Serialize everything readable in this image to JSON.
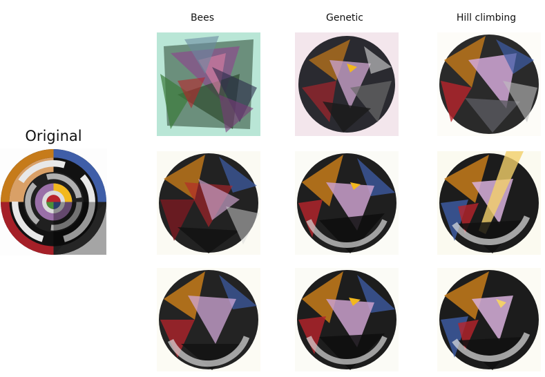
{
  "original": {
    "title": "Original"
  },
  "columns": [
    {
      "label": "Bees"
    },
    {
      "label": "Genetic"
    },
    {
      "label": "Hill climbing"
    }
  ],
  "colors": {
    "background": "#ffffff",
    "disk_black": "#121212",
    "ring_gray": "#9a9a9a",
    "ring_white": "#e8e8e8",
    "orange": "#c67b1a",
    "blue": "#3f5ea8",
    "red": "#b8242c",
    "yellow": "#f2b81e",
    "purple": "#9a6fa8",
    "bees_bg": "#b9e6d6"
  }
}
